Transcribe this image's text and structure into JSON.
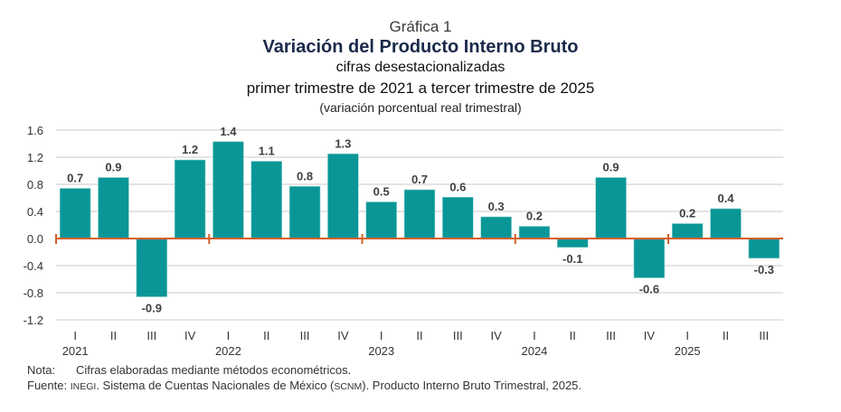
{
  "header": {
    "chart_number": "Gráfica 1",
    "title": "Variación del Producto Interno Bruto",
    "subtitle1": "cifras desestacionalizadas",
    "subtitle2": "primer trimestre de 2021 a tercer trimestre de 2025",
    "subtitle3": "(variación porcentual real trimestral)"
  },
  "colors": {
    "bar": "#0a9696",
    "axis_zero": "#d65f28",
    "grid": "#c8c8c8",
    "text": "#3a3a3a"
  },
  "chart_data": {
    "type": "bar",
    "title": "Variación del Producto Interno Bruto",
    "xlabel": "",
    "ylabel": "variación porcentual real trimestral",
    "ylim": [
      -1.2,
      1.6
    ],
    "yticks": [
      1.6,
      1.2,
      0.8,
      0.4,
      0.0,
      -0.4,
      -0.8,
      -1.2
    ],
    "ytick_labels": [
      "1.6",
      "1.2",
      "0.8",
      "0.4",
      "0.0",
      "-0.4",
      "-0.8",
      "-1.2"
    ],
    "grid": true,
    "categories": [
      "I",
      "II",
      "III",
      "IV",
      "I",
      "II",
      "III",
      "IV",
      "I",
      "II",
      "III",
      "IV",
      "I",
      "II",
      "III",
      "IV",
      "I",
      "II",
      "III"
    ],
    "years": [
      {
        "label": "2021",
        "start": 0
      },
      {
        "label": "2022",
        "start": 4
      },
      {
        "label": "2023",
        "start": 8
      },
      {
        "label": "2024",
        "start": 12
      },
      {
        "label": "2025",
        "start": 16
      }
    ],
    "values": [
      0.74,
      0.9,
      -0.86,
      1.16,
      1.43,
      1.14,
      0.77,
      1.25,
      0.54,
      0.72,
      0.61,
      0.32,
      0.18,
      -0.13,
      0.9,
      -0.58,
      0.22,
      0.44,
      -0.29
    ],
    "data_labels": [
      "0.7",
      "0.9",
      "-0.9",
      "1.2",
      "1.4",
      "1.1",
      "0.8",
      "1.3",
      "0.5",
      "0.7",
      "0.6",
      "0.3",
      "0.2",
      "-0.1",
      "0.9",
      "-0.6",
      "0.2",
      "0.4",
      "-0.3"
    ]
  },
  "notes": {
    "nota_label": "Nota:",
    "nota_text": "Cifras elaboradas mediante métodos econométricos.",
    "fuente_label": "Fuente:",
    "fuente_org": "INEGI",
    "fuente_text1": ". Sistema de Cuentas Nacionales de México (",
    "fuente_abbr": "SCNM",
    "fuente_text2": "). Producto Interno Bruto Trimestral, 2025."
  }
}
